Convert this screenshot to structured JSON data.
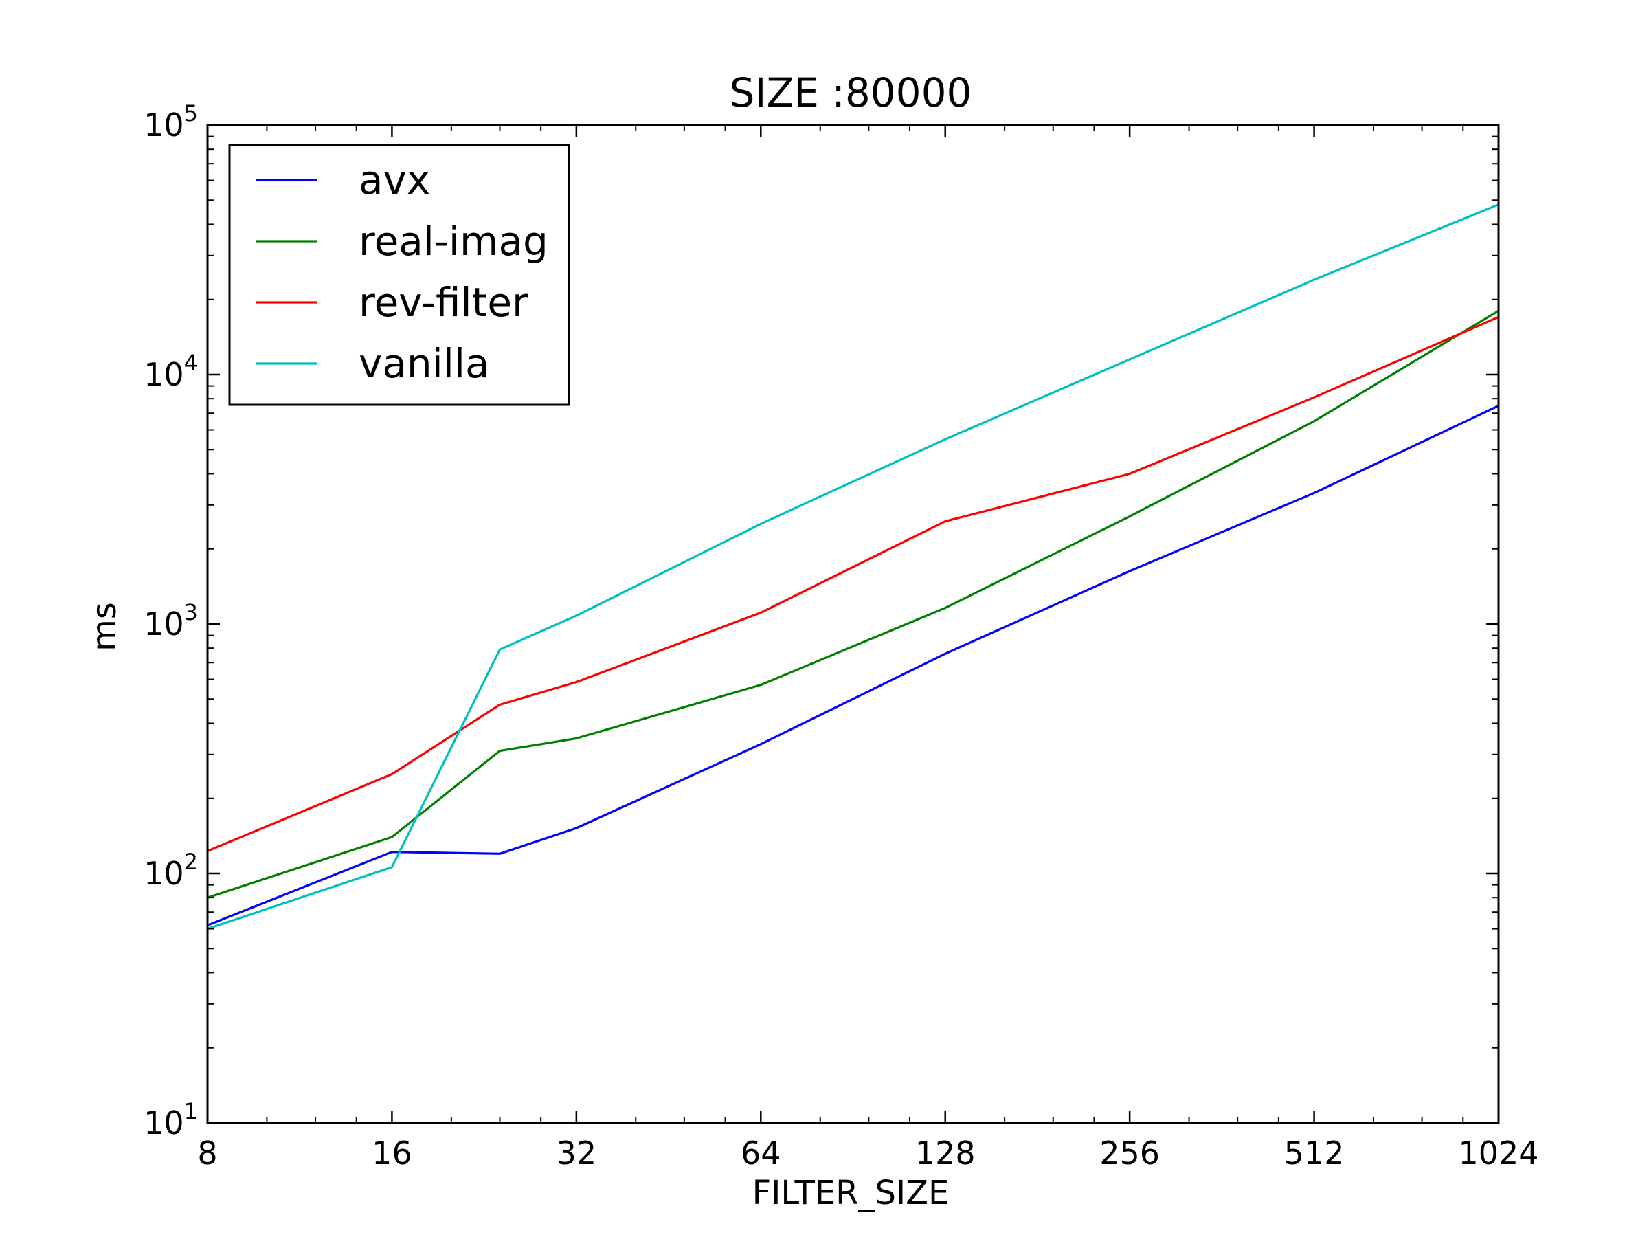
{
  "chart_data": {
    "type": "line",
    "title": "SIZE :80000",
    "xlabel": "FILTER_SIZE",
    "ylabel": "ms",
    "xscale": "log2",
    "yscale": "log10",
    "xlim": [
      8,
      1024
    ],
    "ylim": [
      10,
      100000
    ],
    "xticks": [
      {
        "value": 8,
        "label": "8"
      },
      {
        "value": 16,
        "label": "16"
      },
      {
        "value": 32,
        "label": "32"
      },
      {
        "value": 64,
        "label": "64"
      },
      {
        "value": 128,
        "label": "128"
      },
      {
        "value": 256,
        "label": "256"
      },
      {
        "value": 512,
        "label": "512"
      },
      {
        "value": 1024,
        "label": "1024"
      }
    ],
    "yticks": [
      {
        "value": 10,
        "base": "10",
        "exp": "1"
      },
      {
        "value": 100,
        "base": "10",
        "exp": "2"
      },
      {
        "value": 1000,
        "base": "10",
        "exp": "3"
      },
      {
        "value": 10000,
        "base": "10",
        "exp": "4"
      },
      {
        "value": 100000,
        "base": "10",
        "exp": "5"
      }
    ],
    "grid": false,
    "legend_position": "top-left",
    "x": [
      8,
      16,
      24,
      32,
      64,
      128,
      256,
      512,
      1024
    ],
    "series": [
      {
        "name": "avx",
        "color": "#0000ff",
        "values": [
          62,
          122,
          120,
          152,
          330,
          760,
          1630,
          3350,
          7500
        ]
      },
      {
        "name": "real-imag",
        "color": "#008000",
        "values": [
          80,
          140,
          310,
          348,
          570,
          1160,
          2700,
          6500,
          18000
        ]
      },
      {
        "name": "rev-filter",
        "color": "#ff0000",
        "values": [
          123,
          250,
          475,
          585,
          1110,
          2580,
          4000,
          8100,
          17000
        ]
      },
      {
        "name": "vanilla",
        "color": "#00bfbf",
        "values": [
          60,
          106,
          790,
          1080,
          2520,
          5500,
          11500,
          24000,
          48000
        ]
      }
    ]
  }
}
